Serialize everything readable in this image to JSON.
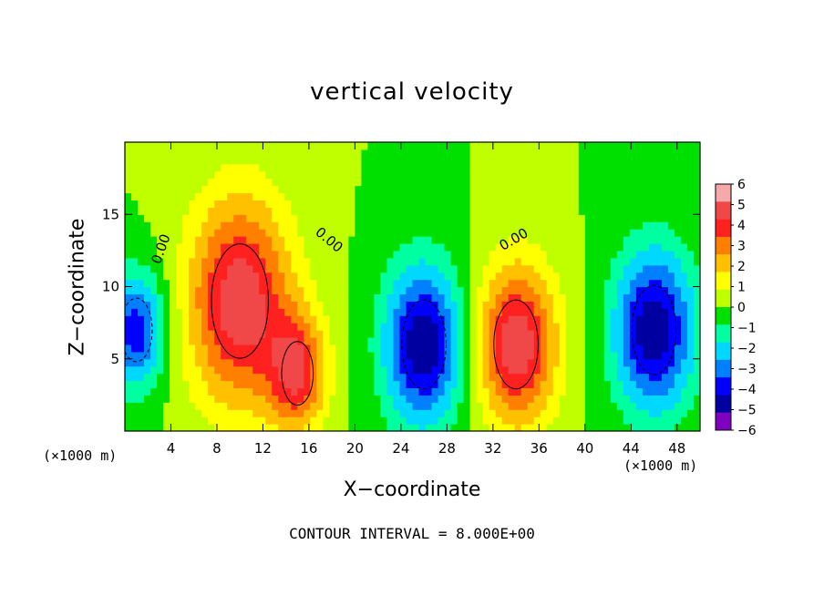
{
  "chart_data": {
    "type": "heatmap",
    "title": "vertical velocity",
    "xlabel": "X−coordinate",
    "ylabel": "Z−coordinate",
    "x_unit": "(×1000 m)",
    "z_unit": "(×1000 m)",
    "xlim": [
      0,
      50
    ],
    "ylim": [
      0,
      20
    ],
    "x_ticks": [
      4,
      8,
      12,
      16,
      20,
      24,
      28,
      32,
      36,
      40,
      44,
      48
    ],
    "y_ticks": [
      5,
      10,
      15
    ],
    "colorbar": {
      "min": -6,
      "max": 6,
      "ticks": [
        "6",
        "5",
        "4",
        "3",
        "2",
        "1",
        "0",
        "−1",
        "−2",
        "−3",
        "−4",
        "−5",
        "−6"
      ],
      "colors": [
        "#f7a8a8",
        "#f04848",
        "#ff2020",
        "#ff8000",
        "#ffc000",
        "#ffff00",
        "#c0ff00",
        "#00e000",
        "#00ffa0",
        "#00d8ff",
        "#0080ff",
        "#0000ff",
        "#0000a0",
        "#8000c0"
      ]
    },
    "contour_labels": [
      "0.00",
      "0.00",
      "0.00"
    ],
    "cells": [
      {
        "x": 10,
        "z": 9,
        "w": 5,
        "r": 4.5
      },
      {
        "x": 15,
        "z": 4,
        "w": 4,
        "r": 2.5
      },
      {
        "x": 34,
        "z": 6,
        "w": 5,
        "r": 3.5
      },
      {
        "x": 26,
        "z": 6,
        "w": -5,
        "r": 3.5
      },
      {
        "x": 46,
        "z": 7,
        "w": -5,
        "r": 3.5
      },
      {
        "x": 1,
        "z": 7,
        "w": -4,
        "r": 2.5
      }
    ]
  },
  "footer": {
    "contour_interval": "CONTOUR INTERVAL = 8.000E+00"
  }
}
